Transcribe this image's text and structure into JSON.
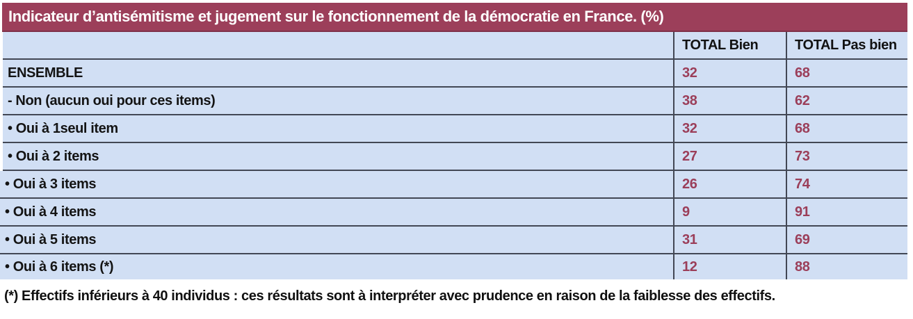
{
  "title": "Indicateur d’antisémitisme et jugement sur le fonctionnement de la démocratie en France. (%)",
  "table": {
    "columns": [
      "",
      "TOTAL Bien",
      "TOTAL Pas bien"
    ],
    "rows": [
      {
        "label": "ENSEMBLE",
        "bien": "32",
        "pas_bien": "68"
      },
      {
        "label": "- Non (aucun oui pour ces items)",
        "bien": "38",
        "pas_bien": "62"
      },
      {
        "label": "• Oui à 1seul item",
        "bien": "32",
        "pas_bien": "68"
      },
      {
        "label": "• Oui à 2 items",
        "bien": "27",
        "pas_bien": "73"
      },
      {
        "label": "• Oui à 3 items",
        "bien": "26",
        "pas_bien": "74"
      },
      {
        "label": "• Oui à 4 items",
        "bien": "9",
        "pas_bien": "91"
      },
      {
        "label": "• Oui à 5 items",
        "bien": "31",
        "pas_bien": "69"
      },
      {
        "label": "• Oui à 6 items (*)",
        "bien": "12",
        "pas_bien": "88"
      }
    ]
  },
  "footnote": "(*) Effectifs inférieurs à 40 individus : ces résultats sont à interpréter avec prudence en raison de la faiblesse des effectifs.",
  "colors": {
    "title_bg": "#9c3f5a",
    "row_bg": "#d1dff4",
    "value_text": "#9b3e59",
    "border": "#424754"
  }
}
